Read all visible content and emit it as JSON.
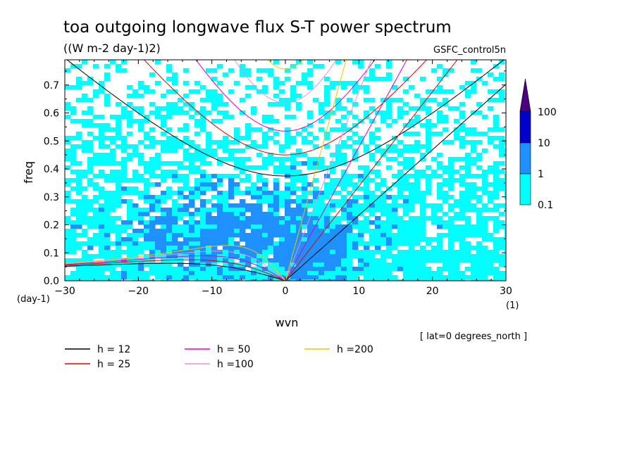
{
  "chart_data": {
    "type": "heatmap",
    "title": "toa outgoing longwave flux S-T power spectrum",
    "subtitle": "((W m-2 day-1)2)",
    "dataset": "GSFC_control5n",
    "xlabel": "wvn",
    "ylabel": "freq",
    "x_unit": "(1)",
    "y_unit": "(day-1)",
    "xlim": [
      -30,
      30
    ],
    "ylim": [
      0,
      0.79
    ],
    "x_ticks": [
      -30,
      -20,
      -10,
      0,
      10,
      20,
      30
    ],
    "y_ticks": [
      0.0,
      0.1,
      0.2,
      0.3,
      0.4,
      0.5,
      0.6,
      0.7
    ],
    "annotation": "[ lat=0 degrees_north ]",
    "colorbar": {
      "levels": [
        0.1,
        1,
        10,
        100
      ],
      "labels": [
        "0.1",
        "1",
        "10",
        "100"
      ],
      "colors": [
        "#00ffff",
        "#1e90ff",
        "#0000cd",
        "#4b0082"
      ]
    },
    "dispersion_curves": [
      {
        "label": "h = 12",
        "h": 12,
        "color": "#000000"
      },
      {
        "label": "h = 25",
        "h": 25,
        "color": "#e00000"
      },
      {
        "label": "h = 50",
        "h": 50,
        "color": "#e000c0"
      },
      {
        "label": "h =100",
        "h": 100,
        "color": "#e890e0"
      },
      {
        "label": "h =200",
        "h": 200,
        "color": "#e8c800"
      }
    ],
    "power_regions": [
      {
        "level": "1-10",
        "description": "broad blob centered near wvn -5, freq 0.05-0.3"
      },
      {
        "level": "0.1-1",
        "description": "background over most of domain, sparser at high freq"
      }
    ]
  }
}
